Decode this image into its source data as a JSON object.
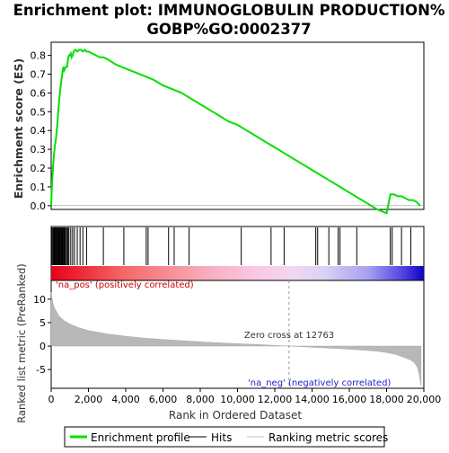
{
  "chart_data": {
    "type": "line",
    "title_line1": "Enrichment plot: IMMUNOGLOBULIN PRODUCTION%",
    "title_line2": "GOBP%GO:0002377",
    "es_panel": {
      "ylabel": "Enrichment score (ES)",
      "ylim": [
        -0.02,
        0.87
      ],
      "yticks": [
        "0.0",
        "0.1",
        "0.2",
        "0.3",
        "0.4",
        "0.5",
        "0.6",
        "0.7",
        "0.8"
      ],
      "ytick_values": [
        0.0,
        0.1,
        0.2,
        0.3,
        0.4,
        0.5,
        0.6,
        0.7,
        0.8
      ],
      "series_color": "#00e000",
      "series": [
        {
          "name": "Enrichment profile",
          "x": [
            0,
            30,
            60,
            100,
            150,
            200,
            250,
            300,
            340,
            380,
            420,
            460,
            500,
            540,
            580,
            620,
            660,
            700,
            740,
            800,
            860,
            900,
            950,
            1000,
            1050,
            1100,
            1150,
            1200,
            1300,
            1400,
            1500,
            1600,
            1700,
            1800,
            1900,
            2000,
            2200,
            2400,
            2600,
            2800,
            3000,
            3500,
            4000,
            4500,
            5000,
            5500,
            6000,
            6500,
            7000,
            7500,
            8000,
            8500,
            9000,
            9500,
            10000,
            10500,
            11000,
            11500,
            12000,
            12500,
            13000,
            13500,
            14000,
            14500,
            15000,
            15500,
            16000,
            16500,
            17000,
            17500,
            18000,
            18200,
            18400,
            18600,
            18800,
            19000,
            19200,
            19400,
            19600,
            19800
          ],
          "y": [
            0.0,
            0.08,
            0.14,
            0.21,
            0.27,
            0.32,
            0.35,
            0.4,
            0.45,
            0.5,
            0.55,
            0.59,
            0.63,
            0.66,
            0.69,
            0.72,
            0.74,
            0.72,
            0.73,
            0.74,
            0.74,
            0.78,
            0.8,
            0.8,
            0.81,
            0.79,
            0.8,
            0.82,
            0.83,
            0.82,
            0.83,
            0.83,
            0.82,
            0.83,
            0.82,
            0.82,
            0.81,
            0.8,
            0.79,
            0.79,
            0.78,
            0.75,
            0.73,
            0.71,
            0.69,
            0.67,
            0.64,
            0.62,
            0.6,
            0.57,
            0.54,
            0.51,
            0.48,
            0.45,
            0.43,
            0.4,
            0.37,
            0.34,
            0.31,
            0.28,
            0.25,
            0.22,
            0.19,
            0.16,
            0.13,
            0.1,
            0.07,
            0.04,
            0.01,
            -0.02,
            -0.04,
            0.06,
            0.06,
            0.05,
            0.05,
            0.04,
            0.03,
            0.03,
            0.02,
            0.0
          ]
        }
      ]
    },
    "hits_panel": {
      "hit_positions": [
        20,
        60,
        110,
        150,
        190,
        230,
        270,
        310,
        350,
        390,
        430,
        470,
        510,
        550,
        590,
        620,
        660,
        700,
        740,
        780,
        850,
        900,
        950,
        1050,
        1150,
        1250,
        1400,
        1550,
        1700,
        1900,
        2800,
        3900,
        5100,
        5200,
        6300,
        6600,
        7400,
        10200,
        11800,
        12500,
        14200,
        14300,
        14900,
        15400,
        15500,
        16400,
        18200,
        18300,
        18800,
        19300
      ]
    },
    "ranked_panel": {
      "ylabel": "Ranked list metric (PreRanked)",
      "ylim": [
        -9,
        14
      ],
      "yticks": [
        "-5",
        "0",
        "5",
        "10"
      ],
      "ytick_values": [
        -5,
        0,
        5,
        10
      ],
      "pos_label": "'na_pos' (positively correlated)",
      "neg_label": "'na_neg' (negatively correlated)",
      "zero_cross_label": "Zero cross at 12763",
      "zero_cross": 12763,
      "metric_x": [
        0,
        100,
        200,
        400,
        700,
        1000,
        1500,
        2000,
        3000,
        4000,
        5000,
        6000,
        7000,
        8000,
        9000,
        10000,
        11000,
        12000,
        12763,
        13500,
        14500,
        15500,
        16500,
        17500,
        18000,
        18500,
        19000,
        19300,
        19500,
        19650,
        19750,
        19850
      ],
      "metric_y": [
        11.5,
        9.0,
        8.0,
        6.5,
        5.4,
        4.7,
        3.9,
        3.3,
        2.6,
        2.1,
        1.7,
        1.4,
        1.15,
        0.9,
        0.7,
        0.5,
        0.35,
        0.15,
        0.0,
        -0.15,
        -0.35,
        -0.55,
        -0.8,
        -1.1,
        -1.4,
        -1.8,
        -2.5,
        -3.0,
        -3.6,
        -4.5,
        -6.0,
        -8.5
      ]
    },
    "xaxis": {
      "label": "Rank in Ordered Dataset",
      "xlim": [
        0,
        20000
      ],
      "ticks": [
        "0",
        "2,000",
        "4,000",
        "6,000",
        "8,000",
        "10,000",
        "12,000",
        "14,000",
        "16,000",
        "18,000",
        "20,000"
      ],
      "tick_values": [
        0,
        2000,
        4000,
        6000,
        8000,
        10000,
        12000,
        14000,
        16000,
        18000,
        20000
      ],
      "n_genes": 19850
    },
    "legend": {
      "placement": "bottom",
      "items": [
        {
          "label": "Enrichment profile",
          "color": "#00e000"
        },
        {
          "label": "Hits",
          "color": "#000000"
        },
        {
          "label": "Ranking metric scores",
          "color": "#c0c0c0"
        }
      ]
    }
  }
}
